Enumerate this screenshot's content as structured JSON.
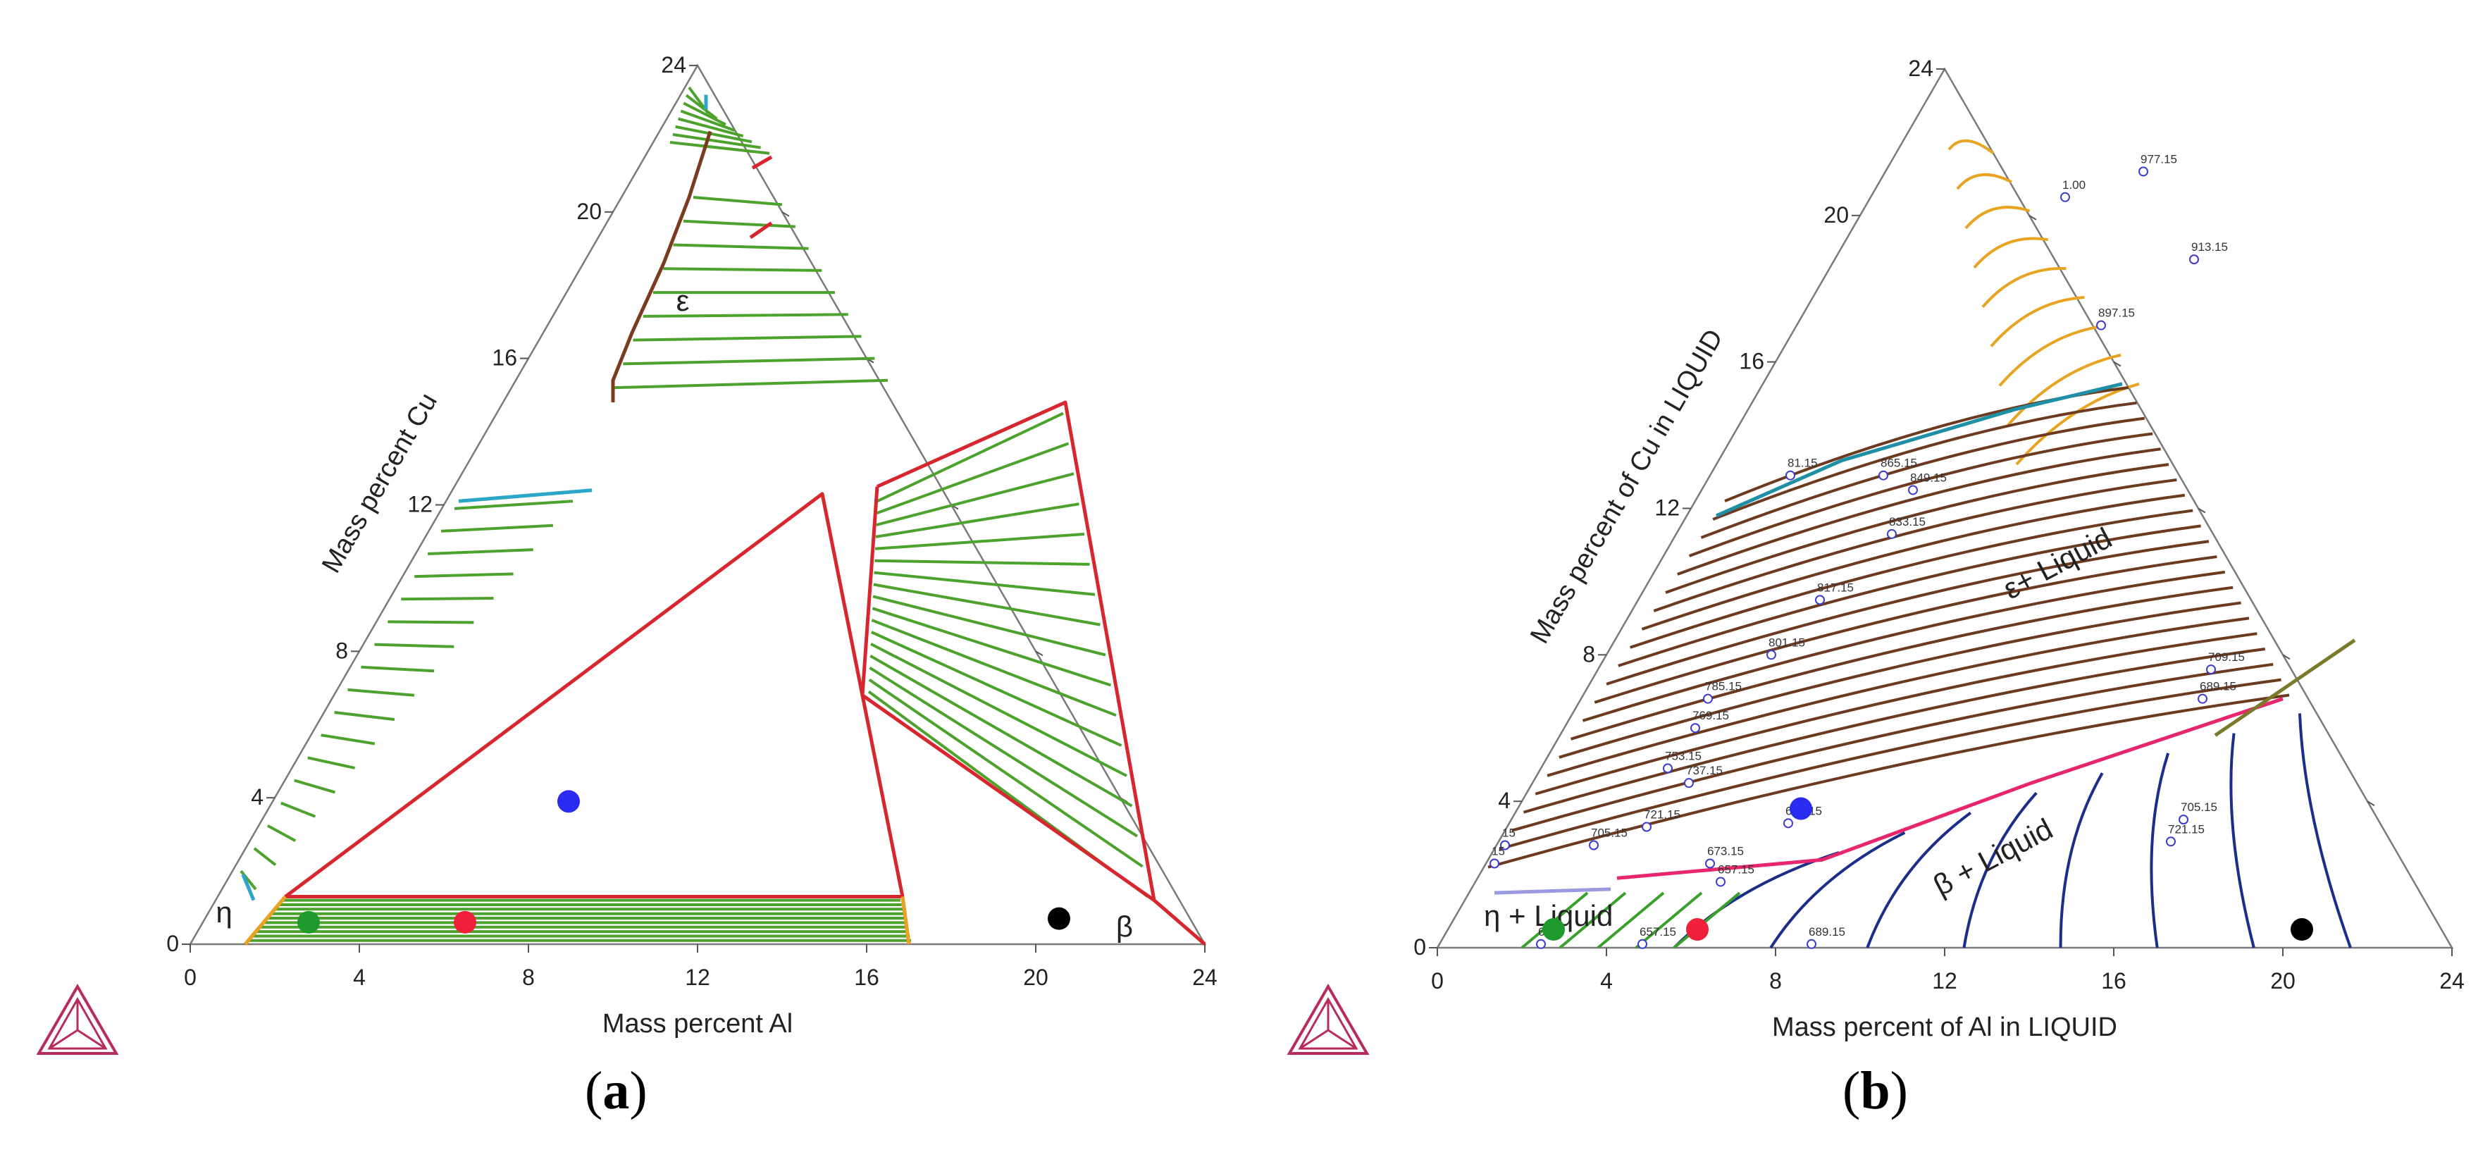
{
  "chart_data": [
    {
      "type": "ternary-isothermal-section",
      "panel_label": "a",
      "xlabel": "Mass percent Al",
      "ylabel": "Mass percent Cu",
      "x_ticks": [
        "0",
        "4",
        "8",
        "12",
        "16",
        "20",
        "24"
      ],
      "y_ticks": [
        "0",
        "4",
        "8",
        "12",
        "16",
        "20",
        "24"
      ],
      "range": [
        0,
        24
      ],
      "phase_labels": [
        {
          "text": "ε",
          "al": 3,
          "cu": 17.3
        },
        {
          "text": "η",
          "al": 0.5,
          "cu": 0.6
        },
        {
          "text": "β",
          "al": 22,
          "cu": 0.2
        }
      ],
      "boundaries": [
        {
          "color": "#d7262e",
          "points": [
            [
              1.6,
              1.3
            ],
            [
              8.8,
              12.3
            ],
            [
              16.2,
              1.3
            ],
            [
              1.6,
              1.3
            ]
          ]
        },
        {
          "color": "#d7262e",
          "points": [
            [
              10.0,
              12.5
            ],
            [
              12.5,
              6.8
            ],
            [
              22.2,
              1.2
            ],
            [
              13.3,
              14.8
            ],
            [
              10.0,
              12.5
            ]
          ]
        },
        {
          "color": "#d7262e",
          "points": [
            [
              22.2,
              1.2
            ],
            [
              24.0,
              0.0
            ]
          ]
        },
        {
          "color": "#d7262e",
          "points": [
            [
              1.3,
              0.0
            ],
            [
              1.6,
              1.3
            ]
          ]
        },
        {
          "color": "#d7262e",
          "points": [
            [
              16.2,
              1.3
            ],
            [
              17.0,
              0.0
            ]
          ]
        },
        {
          "color": "#d7262e",
          "points": [
            [
              3.6,
              19.3
            ],
            [
              3.9,
              19.7
            ]
          ]
        },
        {
          "color": "#d7262e",
          "points": [
            [
              2.7,
              21.2
            ],
            [
              3.0,
              21.5
            ]
          ]
        },
        {
          "color": "#2aa6c8",
          "points": [
            [
              0.3,
              12.1
            ],
            [
              3.3,
              12.4
            ]
          ]
        },
        {
          "color": "#2aa6c8",
          "points": [
            [
              0.3,
              1.9
            ],
            [
              0.9,
              1.2
            ]
          ]
        },
        {
          "color": "#2aa6c8",
          "points": [
            [
              0.8,
              22.8
            ],
            [
              0.6,
              23.2
            ]
          ]
        },
        {
          "color": "#e8a420",
          "points": [
            [
              1.3,
              0.0
            ],
            [
              1.6,
              1.3
            ]
          ]
        },
        {
          "color": "#e8a420",
          "points": [
            [
              16.2,
              1.3
            ],
            [
              17.0,
              0.0
            ]
          ]
        },
        {
          "color": "#7b3b1f",
          "points": [
            [
              1.2,
              22.2
            ],
            [
              1.6,
              20.4
            ],
            [
              1.9,
              18.6
            ],
            [
              2.1,
              16.7
            ],
            [
              2.3,
              15.4
            ],
            [
              2.6,
              14.8
            ]
          ]
        }
      ],
      "tie_line_regions": [
        "η+ε (left edge)",
        "η+β (bottom)",
        "ε+β (right)",
        "ε+liquid (top)"
      ],
      "markers": [
        {
          "color": "#2a2af0",
          "al": 7.0,
          "cu": 3.9
        },
        {
          "color": "#1f9a2c",
          "al": 2.5,
          "cu": 0.6
        },
        {
          "color": "#f0203a",
          "al": 6.2,
          "cu": 0.6
        },
        {
          "color": "#000000",
          "al": 20.2,
          "cu": 0.7
        }
      ]
    },
    {
      "type": "ternary-liquidus-projection",
      "panel_label": "b",
      "xlabel": "Mass percent of Al in LIQUID",
      "ylabel": "Mass percent of Cu in LIQUID",
      "x_ticks": [
        "0",
        "4",
        "8",
        "12",
        "16",
        "20",
        "24"
      ],
      "y_ticks": [
        "0",
        "4",
        "8",
        "12",
        "16",
        "20",
        "24"
      ],
      "range": [
        0,
        24
      ],
      "region_labels": [
        {
          "text": "ε+ Liquid",
          "al": 8.8,
          "cu": 9.5
        },
        {
          "text": "β + Liquid",
          "al": 11.2,
          "cu": 1.4
        },
        {
          "text": "η + Liquid",
          "al": 0.8,
          "cu": 0.6
        }
      ],
      "isotherm_labels": [
        {
          "text": "977.15",
          "al": 6.1,
          "cu": 21.2
        },
        {
          "text": "913.15",
          "al": 8.5,
          "cu": 18.8
        },
        {
          "text": "897.15",
          "al": 7.2,
          "cu": 17.0
        },
        {
          "text": "865.15",
          "al": 4.1,
          "cu": 12.9
        },
        {
          "text": "849.15",
          "al": 5.0,
          "cu": 12.5
        },
        {
          "text": "833.15",
          "al": 5.1,
          "cu": 11.3
        },
        {
          "text": "817.15",
          "al": 4.3,
          "cu": 9.5
        },
        {
          "text": "801.15",
          "al": 3.9,
          "cu": 8.0
        },
        {
          "text": "785.15",
          "al": 3.0,
          "cu": 6.8
        },
        {
          "text": "769.15",
          "al": 3.1,
          "cu": 6.0
        },
        {
          "text": "753.15",
          "al": 3.0,
          "cu": 4.9
        },
        {
          "text": "737.15",
          "al": 3.7,
          "cu": 4.5
        },
        {
          "text": "721.15",
          "al": 3.3,
          "cu": 3.3
        },
        {
          "text": "705.15",
          "al": 2.3,
          "cu": 2.8
        },
        {
          "text": "689.15",
          "al": 6.6,
          "cu": 3.4
        },
        {
          "text": "673.15",
          "al": 5.3,
          "cu": 2.3
        },
        {
          "text": "657.15",
          "al": 5.8,
          "cu": 1.8
        },
        {
          "text": "673",
          "al": 2.4,
          "cu": 0.1
        },
        {
          "text": "657.15",
          "al": 4.8,
          "cu": 0.1
        },
        {
          "text": "689.15",
          "al": 8.8,
          "cu": 0.1
        },
        {
          "text": "709.15",
          "al": 14.5,
          "cu": 7.6
        },
        {
          "text": "689.15",
          "al": 14.7,
          "cu": 6.8
        },
        {
          "text": "705.15",
          "al": 15.9,
          "cu": 3.5
        },
        {
          "text": "721.15",
          "al": 15.9,
          "cu": 2.9
        },
        {
          "text": "81.15",
          "al": 1.9,
          "cu": 12.9
        },
        {
          "text": "1.00",
          "al": 4.6,
          "cu": 20.5
        },
        {
          "text": "15",
          "al": 0.2,
          "cu": 2.8
        },
        {
          "text": "15",
          "al": 0.2,
          "cu": 2.3
        }
      ],
      "boundaries": [
        {
          "color": "#1f8fa6",
          "points": [
            [
              0.7,
              11.8
            ],
            [
              2.9,
              13.3
            ],
            [
              6.3,
              14.7
            ],
            [
              8.5,
              15.4
            ]
          ]
        },
        {
          "color": "#e8266e",
          "points": [
            [
              3.3,
              1.9
            ],
            [
              7.9,
              2.4
            ],
            [
              11.8,
              4.5
            ],
            [
              16.6,
              6.8
            ]
          ]
        },
        {
          "color": "#9a9ae0",
          "points": [
            [
              0.6,
              1.5
            ],
            [
              3.3,
              1.6
            ]
          ]
        },
        {
          "color": "#7a7a2a",
          "points": [
            [
              15.5,
              5.8
            ],
            [
              17.5,
              8.4
            ]
          ]
        }
      ],
      "isotherm_colors": [
        "#e8a420",
        "#6b3a1f",
        "#1c2d8a",
        "#3aa02c"
      ],
      "markers": [
        {
          "color": "#2a2af0",
          "al": 6.7,
          "cu": 3.8
        },
        {
          "color": "#1f9a2c",
          "al": 2.5,
          "cu": 0.5
        },
        {
          "color": "#f0203a",
          "al": 5.9,
          "cu": 0.5
        },
        {
          "color": "#000000",
          "al": 20.2,
          "cu": 0.5
        }
      ]
    }
  ],
  "captions": {
    "a": "a",
    "b": "b"
  },
  "icons": {
    "logo": "thermo-calc-logo-icon"
  }
}
